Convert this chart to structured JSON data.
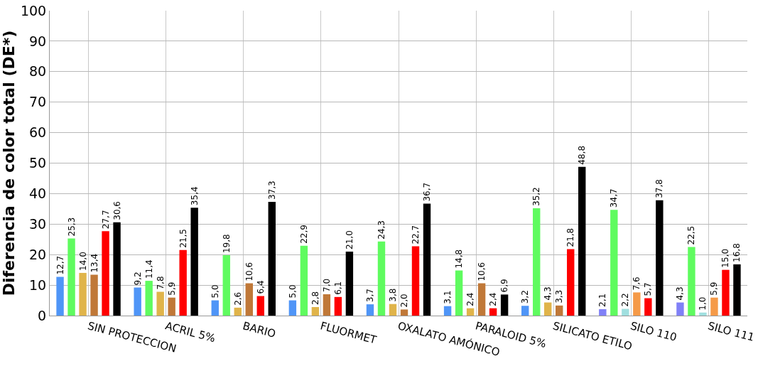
{
  "chart_data": {
    "type": "bar",
    "ylabel": "Diferencia de color total (DE*)",
    "categories": [
      "SIN PROTECCION",
      "ACRIL 5%",
      "BARIO",
      "FLUORMET",
      "OXALATO AMÓNICO",
      "PARALOID 5%",
      "SILICATO ETILO",
      "SILO 110",
      "SILO 111"
    ],
    "series": [
      {
        "colors": [
          "#4f95f7",
          "#4f95f7",
          "#4f95f7",
          "#4f95f7",
          "#4f95f7",
          "#4f95f7",
          "#4f95f7",
          "#8080f7",
          "#8080f7"
        ],
        "values": [
          12.7,
          9.2,
          5.0,
          5.0,
          3.7,
          3.1,
          3.2,
          2.1,
          4.3
        ],
        "value_labels": [
          "12,7",
          "9,2",
          "5,0",
          "5,0",
          "3,7",
          "3,1",
          "3,2",
          "2,1",
          "4,3"
        ]
      },
      {
        "colors": [
          "#5ffb5f",
          "#5ffb5f",
          "#5ffb5f",
          "#5ffb5f",
          "#5ffb5f",
          "#5ffb5f",
          "#5ffb5f",
          "#5ffb5f",
          "#5ffb5f"
        ],
        "values": [
          25.3,
          11.4,
          19.8,
          22.9,
          24.3,
          14.8,
          35.2,
          34.7,
          22.5
        ],
        "value_labels": [
          "25,3",
          "11,4",
          "19,8",
          "22,9",
          "24,3",
          "14,8",
          "35,2",
          "34,7",
          "22,5"
        ]
      },
      {
        "colors": [
          "#e0b44a",
          "#e0b44a",
          "#e0b44a",
          "#e0b44a",
          "#e0b44a",
          "#e0b44a",
          "#e0b44a",
          "#a0dfdf",
          "#a0dfdf"
        ],
        "values": [
          14.0,
          7.8,
          2.6,
          2.8,
          3.8,
          2.4,
          4.3,
          2.2,
          1.0
        ],
        "value_labels": [
          "14,0",
          "7,8",
          "2,6",
          "2,8",
          "3,8",
          "2,4",
          "4,3",
          "2,2",
          "1,0"
        ]
      },
      {
        "colors": [
          "#c07838",
          "#c07838",
          "#c07838",
          "#c07838",
          "#c07838",
          "#c07838",
          "#c07838",
          "#f59a48",
          "#f59a48"
        ],
        "values": [
          13.4,
          5.9,
          10.6,
          7.0,
          2.0,
          10.6,
          3.3,
          7.6,
          5.9
        ],
        "value_labels": [
          "13,4",
          "5,9",
          "10,6",
          "7,0",
          "2,0",
          "10,6",
          "3,3",
          "7,6",
          "5,9"
        ]
      },
      {
        "colors": [
          "#ff0000",
          "#ff0000",
          "#ff0000",
          "#ff0000",
          "#ff0000",
          "#ff0000",
          "#ff0000",
          "#ff0000",
          "#ff0000"
        ],
        "values": [
          27.7,
          21.5,
          6.4,
          6.1,
          22.7,
          2.4,
          21.8,
          5.7,
          15.0
        ],
        "value_labels": [
          "27,7",
          "21,5",
          "6,4",
          "6,1",
          "22,7",
          "2,4",
          "21,8",
          "5,7",
          "15,0"
        ]
      },
      {
        "colors": [
          "#000000",
          "#000000",
          "#000000",
          "#000000",
          "#000000",
          "#000000",
          "#000000",
          "#000000",
          "#000000"
        ],
        "values": [
          30.6,
          35.4,
          37.3,
          21.0,
          36.7,
          6.9,
          48.8,
          37.8,
          16.8
        ],
        "value_labels": [
          "30,6",
          "35,4",
          "37,3",
          "21,0",
          "36,7",
          "6,9",
          "48,8",
          "37,8",
          "16,8"
        ]
      }
    ],
    "ylim": [
      0,
      100
    ],
    "yticks": [
      0,
      10,
      20,
      30,
      40,
      50,
      60,
      70,
      80,
      90,
      100
    ],
    "grid": true
  }
}
